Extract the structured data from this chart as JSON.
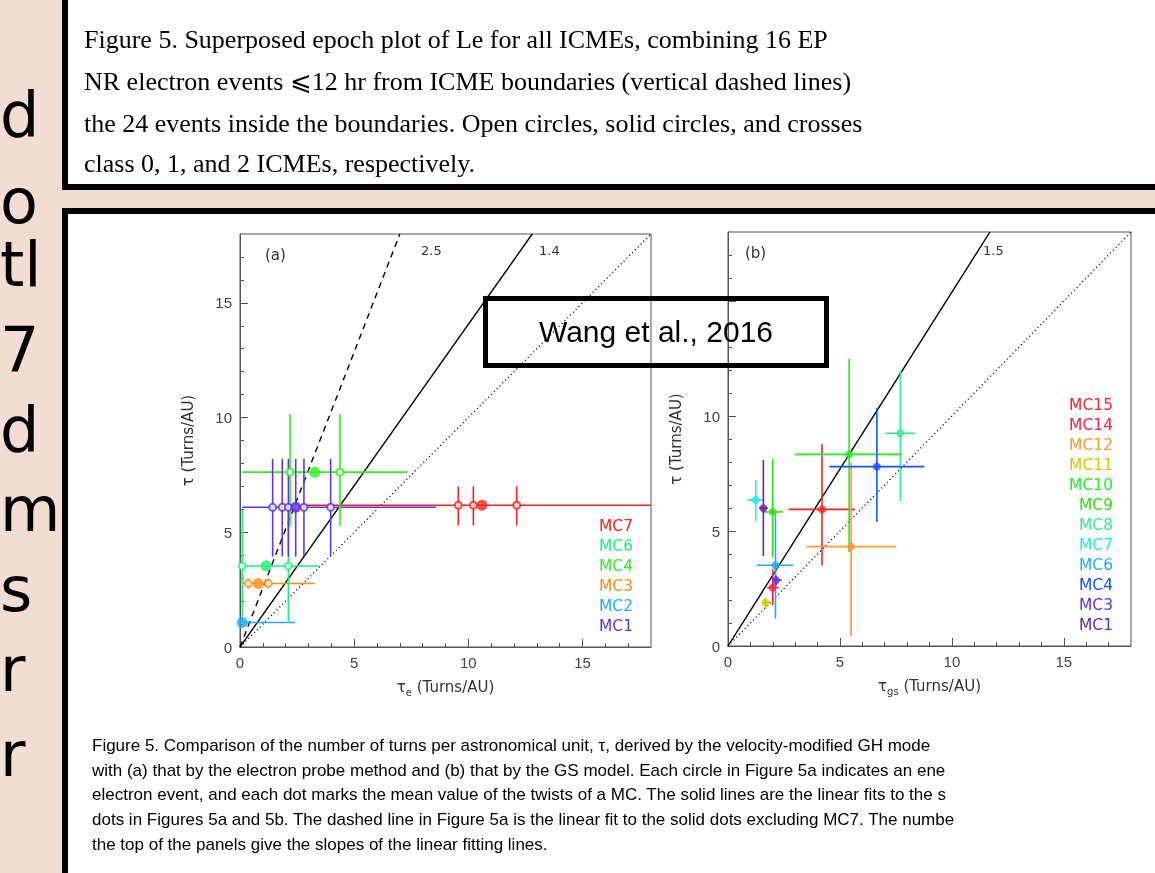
{
  "chart_data": [
    {
      "type": "scatter",
      "title": "(a)",
      "xlabel": "τ$_{e}$ (Turns/AU)",
      "ylabel": "τ (Turns/AU)",
      "xlim": [
        0,
        18
      ],
      "ylim": [
        0,
        18
      ],
      "xticks": [
        0,
        5,
        10,
        15
      ],
      "yticks": [
        0,
        5,
        10,
        15
      ],
      "grid": false,
      "legend": "bottom right",
      "marker": "circle",
      "annotations": [
        "Figure 5. Superposed epoch plot of Le for all ICMEs, combining 16 EP",
        "NR electron events ⩽12 hr from ICME boundaries (vertical dashed lines)",
        "the 24 events inside the boundaries. Open circles, solid circles, and crosses",
        "class 0, 1, and 2 ICMEs, respectively.",
        "Wang et al., 2016",
        "Figure 5. Comparison of the number of turns per astronomical unit, τ, derived by the velocity-modified GH mode",
        "with (a) that by the electron probe method and (b) that by the GS model. Each circle in Figure 5a indicates an ene",
        "electron event, and each dot marks the mean value of the twists of a MC. The solid lines are the linear fits to the s",
        "dots in Figures 5a and 5b. The dashed line in Figure 5a is the linear fit to the solid dots excluding MC7. The numbe",
        "the top of the panels give the slopes of the linear fitting lines.",
        "d",
        "o",
        "tl",
        "7",
        "d",
        "m",
        "s",
        "r",
        "r",
        "2.5",
        "1.4"
      ],
      "series": [
        {
          "name": "MC7",
          "color": "#ff2020",
          "x": [
            10.6
          ],
          "values": [
            6.18
          ],
          "xerrors": [
            [
              2.7,
              18
            ]
          ]
        },
        {
          "name": "MC6",
          "color": "#22ee77",
          "x": [
            1.14
          ],
          "values": [
            3.53
          ],
          "xerrors": [
            [
              0.1,
              3.5
            ]
          ]
        },
        {
          "name": "MC4",
          "color": "#33ee22",
          "x": [
            3.28
          ],
          "values": [
            7.62
          ],
          "xerrors": [
            [
              0.1,
              7.34
            ]
          ]
        },
        {
          "name": "MC3",
          "color": "#ff8c1a",
          "x": [
            0.8
          ],
          "values": [
            2.77
          ],
          "xerrors": [
            [
              0.1,
              3.28
            ]
          ]
        },
        {
          "name": "MC2",
          "color": "#22aaff",
          "x": [
            0.1
          ],
          "values": [
            1.07
          ],
          "xerrors": [
            [
              0.1,
              2.41
            ]
          ]
        },
        {
          "name": "MC1",
          "color": "#6633dd",
          "x": [
            2.44
          ],
          "values": [
            6.09
          ],
          "xerrors": [
            [
              0.1,
              8.6
            ]
          ]
        },
        {
          "color": "#ff2020",
          "x": [
            9.56,
            10.22,
            12.12
          ],
          "values": [
            6.18,
            6.18,
            6.18
          ],
          "errors": [
            [
              5.3,
              7.0
            ],
            [
              5.3,
              7.0
            ],
            [
              5.3,
              7.0
            ]
          ]
        },
        {
          "color": "#22ee77",
          "x": [
            0.1,
            2.12
          ],
          "values": [
            3.53,
            3.53
          ],
          "errors": [
            [
              1.07,
              5.99
            ],
            [
              1.07,
              5.99
            ]
          ]
        },
        {
          "color": "#33ee22",
          "x": [
            2.19,
            4.38
          ],
          "values": [
            7.62,
            7.62
          ],
          "errors": [
            [
              5.26,
              10.15
            ],
            [
              5.26,
              10.15
            ]
          ]
        },
        {
          "color": "#ff8c1a",
          "x": [
            0.36,
            1.24
          ],
          "values": [
            2.77,
            2.77
          ],
          "errors": [
            [
              2.55,
              2.99
            ],
            [
              2.55,
              2.99
            ]
          ]
        },
        {
          "color": "#6633dd",
          "x": [
            1.43,
            1.85,
            2.12,
            2.44,
            2.8,
            3.97
          ],
          "values": [
            6.09,
            6.09,
            6.09,
            6.09,
            6.09,
            6.09
          ],
          "errors": [
            [
              3.94,
              8.2
            ],
            [
              3.94,
              8.2
            ],
            [
              3.94,
              8.2
            ],
            [
              3.94,
              8.2
            ],
            [
              3.94,
              8.2
            ],
            [
              3.94,
              8.2
            ]
          ]
        },
        {
          "type": "line",
          "color": "#000000",
          "line_style": "dashed",
          "marker": "none",
          "x": [
            0,
            7.0
          ],
          "values": [
            0,
            18
          ]
        },
        {
          "type": "line",
          "color": "#000000",
          "line_style": "solid",
          "marker": "none",
          "x": [
            0,
            12.8
          ],
          "values": [
            0,
            18
          ]
        },
        {
          "type": "line",
          "color": "#000000",
          "line_style": "dotted",
          "marker": "none",
          "x": [
            0,
            18
          ],
          "values": [
            0,
            18
          ]
        }
      ]
    },
    {
      "type": "scatter",
      "title": "(b)",
      "xlabel": "τ$_{gs}$ (Turns/AU)",
      "ylabel": "τ (Turns/AU)",
      "xlim": [
        0,
        18
      ],
      "ylim": [
        0,
        18
      ],
      "xticks": [
        0,
        5,
        10,
        15
      ],
      "yticks": [
        0,
        5,
        10,
        {
          "value": 15,
          "label": null
        }
      ],
      "grid": false,
      "legend": "bottom right",
      "marker": "circle",
      "annotations": [
        "1.5"
      ],
      "series": [
        {
          "name": "MC15",
          "color": "#ff2222",
          "x": [
            4.2
          ],
          "values": [
            5.94
          ],
          "xerrors": [
            [
              2.7,
              5.67
            ]
          ],
          "errors": [
            [
              3.5,
              8.77
            ]
          ]
        },
        {
          "name": "MC14",
          "color": "#ff2244",
          "x": [
            2.0
          ],
          "values": [
            2.54
          ],
          "xerrors": [
            [
              1.75,
              2.27
            ]
          ],
          "errors": [
            [
              1.77,
              3.33
            ]
          ]
        },
        {
          "name": "MC12",
          "color": "#ff9933",
          "x": [
            5.5
          ],
          "values": [
            4.32
          ],
          "xerrors": [
            [
              3.5,
              7.49
            ]
          ],
          "errors": [
            [
              0.41,
              7.97
            ]
          ]
        },
        {
          "name": "MC11",
          "color": "#d8c800",
          "x": [
            1.68
          ],
          "values": [
            1.88
          ],
          "xerrors": [
            [
              1.5,
              1.87
            ]
          ],
          "errors": [
            [
              1.62,
              2.1
            ]
          ]
        },
        {
          "name": "MC10",
          "color": "#22ee22",
          "x": [
            5.41
          ],
          "values": [
            8.33
          ],
          "xerrors": [
            [
              3.0,
              7.78
            ]
          ],
          "errors": [
            [
              4.09,
              12.49
            ]
          ]
        },
        {
          "name": "MC9",
          "color": "#33dd11",
          "x": [
            2.0
          ],
          "values": [
            5.83
          ],
          "xerrors": [
            [
              1.54,
              2.46
            ]
          ],
          "errors": [
            [
              3.84,
              8.14
            ]
          ]
        },
        {
          "name": "MC8",
          "color": "#33ee88",
          "x": [
            7.7
          ],
          "values": [
            9.25
          ],
          "xerrors": [
            [
              7.02,
              8.36
            ]
          ],
          "errors": [
            [
              6.3,
              11.96
            ]
          ]
        },
        {
          "name": "MC7",
          "color": "#22eedd",
          "x": [
            1.24
          ],
          "values": [
            6.35
          ],
          "xerrors": [
            [
              0.85,
              1.64
            ]
          ],
          "errors": [
            [
              5.43,
              7.22
            ]
          ]
        },
        {
          "name": "MC6",
          "color": "#22aaee",
          "x": [
            2.12
          ],
          "values": [
            3.51
          ],
          "xerrors": [
            [
              1.29,
              2.92
            ]
          ],
          "errors": [
            [
              1.19,
              5.72
            ]
          ]
        },
        {
          "name": "MC4",
          "color": "#1155ff",
          "x": [
            6.65
          ],
          "values": [
            7.8
          ],
          "xerrors": [
            [
              4.53,
              8.77
            ]
          ],
          "errors": [
            [
              5.39,
              10.36
            ]
          ]
        },
        {
          "name": "MC3",
          "color": "#6633dd",
          "x": [
            2.15
          ],
          "values": [
            2.86
          ],
          "xerrors": [
            [
              1.97,
              2.41
            ]
          ],
          "errors": [
            [
              2.64,
              3.07
            ]
          ]
        },
        {
          "name": "MC1",
          "color": "#772299",
          "x": [
            1.58
          ],
          "values": [
            5.99
          ],
          "xerrors": [
            [
              1.39,
              1.78
            ]
          ],
          "errors": [
            [
              3.91,
              8.09
            ]
          ]
        },
        {
          "type": "line",
          "color": "#000000",
          "line_style": "solid",
          "marker": "none",
          "x": [
            0,
            11.7
          ],
          "values": [
            0,
            18
          ]
        },
        {
          "type": "line",
          "color": "#000000",
          "line_style": "dotted",
          "marker": "none",
          "x": [
            0,
            18
          ],
          "values": [
            0,
            18
          ]
        }
      ]
    }
  ]
}
